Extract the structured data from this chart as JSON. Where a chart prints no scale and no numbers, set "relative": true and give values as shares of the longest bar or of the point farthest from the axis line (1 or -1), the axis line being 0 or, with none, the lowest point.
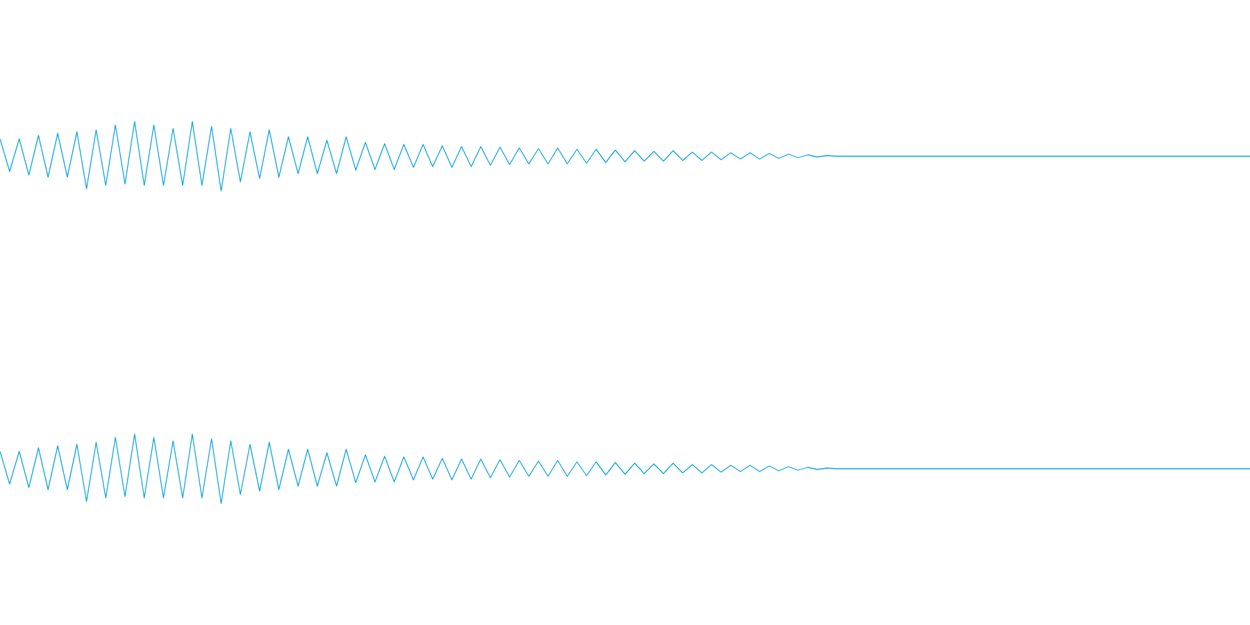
{
  "chart_data": [
    {
      "type": "line",
      "relative": true,
      "color": "#0aa5e0",
      "categories": [
        null,
        null,
        null,
        null,
        null,
        null,
        null,
        null,
        null,
        null,
        null,
        null,
        null,
        null,
        null,
        null,
        null,
        null,
        null,
        null,
        null,
        null,
        null,
        null,
        null,
        null,
        null,
        null,
        null,
        null,
        null,
        null,
        null,
        null,
        null,
        null,
        null,
        null,
        null,
        null,
        null,
        null,
        null,
        null,
        null,
        null,
        null,
        null,
        null,
        null,
        null,
        null,
        null,
        null,
        null,
        null,
        null,
        null,
        null,
        null,
        null,
        null,
        null,
        null,
        null,
        null,
        null,
        null,
        null,
        null,
        null,
        null,
        null,
        null,
        null,
        null,
        null,
        null,
        null,
        null,
        null,
        null,
        null,
        null,
        null,
        null,
        null,
        null,
        null,
        null,
        null,
        null,
        null,
        null,
        null,
        null,
        null,
        null,
        null,
        null,
        null,
        null,
        null,
        null,
        null,
        null,
        null,
        null,
        null,
        null,
        null,
        null,
        null,
        null,
        null,
        null,
        null,
        null,
        null,
        null,
        null,
        null,
        null,
        null,
        null,
        null,
        null,
        null,
        null,
        null,
        null
      ],
      "values": [
        0.75,
        0.28,
        0.75,
        0.23,
        0.8,
        0.2,
        0.83,
        0.2,
        0.85,
        0.03,
        0.88,
        0.08,
        0.95,
        0.1,
        1,
        0.08,
        0.95,
        0.08,
        0.9,
        0.08,
        1,
        0.08,
        0.93,
        0,
        0.9,
        0.13,
        0.85,
        0.18,
        0.88,
        0.2,
        0.78,
        0.25,
        0.78,
        0.25,
        0.73,
        0.25,
        0.78,
        0.3,
        0.7,
        0.31,
        0.68,
        0.31,
        0.67,
        0.34,
        0.67,
        0.35,
        0.65,
        0.34,
        0.64,
        0.35,
        0.64,
        0.37,
        0.63,
        0.38,
        0.62,
        0.39,
        0.61,
        0.39,
        0.62,
        0.39,
        0.6,
        0.4,
        0.6,
        0.41,
        0.59,
        0.42,
        0.58,
        0.43,
        0.57,
        0.43,
        0.58,
        0.44,
        0.56,
        0.44,
        0.56,
        0.45,
        0.55,
        0.46,
        0.55,
        0.46,
        0.54,
        0.47,
        0.53,
        0.48,
        0.52,
        0.49,
        0.51,
        0.5,
        0.5,
        0.5,
        0.5,
        0.5,
        0.5,
        0.5,
        0.5,
        0.5,
        0.5,
        0.5,
        0.5,
        0.5,
        0.5,
        0.5,
        0.5,
        0.5,
        0.5,
        0.5,
        0.5,
        0.5,
        0.5,
        0.5,
        0.5,
        0.5,
        0.5,
        0.5,
        0.5,
        0.5,
        0.5,
        0.5,
        0.5,
        0.5,
        0.5,
        0.5,
        0.5,
        0.5,
        0.5,
        0.5,
        0.5,
        0.5,
        0.5,
        0.5,
        0.5
      ]
    },
    {
      "type": "line",
      "relative": true,
      "color": "#0aa5e0",
      "categories": [
        null,
        null,
        null,
        null,
        null,
        null,
        null,
        null,
        null,
        null,
        null,
        null,
        null,
        null,
        null,
        null,
        null,
        null,
        null,
        null,
        null,
        null,
        null,
        null,
        null,
        null,
        null,
        null,
        null,
        null,
        null,
        null,
        null,
        null,
        null,
        null,
        null,
        null,
        null,
        null,
        null,
        null,
        null,
        null,
        null,
        null,
        null,
        null,
        null,
        null,
        null,
        null,
        null,
        null,
        null,
        null,
        null,
        null,
        null,
        null,
        null,
        null,
        null,
        null,
        null,
        null,
        null,
        null,
        null,
        null,
        null,
        null,
        null,
        null,
        null,
        null,
        null,
        null,
        null,
        null,
        null,
        null,
        null,
        null,
        null,
        null,
        null,
        null,
        null,
        null,
        null,
        null,
        null,
        null,
        null,
        null,
        null,
        null,
        null,
        null,
        null,
        null,
        null,
        null,
        null,
        null,
        null,
        null,
        null,
        null,
        null,
        null,
        null,
        null,
        null,
        null,
        null,
        null,
        null,
        null,
        null,
        null,
        null,
        null,
        null,
        null,
        null,
        null,
        null,
        null,
        null
      ],
      "values": [
        0.75,
        0.28,
        0.75,
        0.23,
        0.8,
        0.2,
        0.83,
        0.2,
        0.85,
        0.03,
        0.88,
        0.08,
        0.95,
        0.1,
        1,
        0.08,
        0.95,
        0.08,
        0.9,
        0.08,
        1,
        0.08,
        0.93,
        0,
        0.9,
        0.13,
        0.85,
        0.18,
        0.88,
        0.2,
        0.78,
        0.25,
        0.78,
        0.25,
        0.73,
        0.25,
        0.78,
        0.3,
        0.7,
        0.31,
        0.68,
        0.31,
        0.67,
        0.34,
        0.67,
        0.35,
        0.65,
        0.34,
        0.64,
        0.35,
        0.64,
        0.37,
        0.63,
        0.38,
        0.62,
        0.39,
        0.61,
        0.39,
        0.62,
        0.39,
        0.6,
        0.4,
        0.6,
        0.41,
        0.59,
        0.42,
        0.58,
        0.43,
        0.57,
        0.43,
        0.58,
        0.44,
        0.56,
        0.44,
        0.56,
        0.45,
        0.55,
        0.46,
        0.55,
        0.46,
        0.54,
        0.47,
        0.53,
        0.48,
        0.52,
        0.49,
        0.51,
        0.5,
        0.5,
        0.5,
        0.5,
        0.5,
        0.5,
        0.5,
        0.5,
        0.5,
        0.5,
        0.5,
        0.5,
        0.5,
        0.5,
        0.5,
        0.5,
        0.5,
        0.5,
        0.5,
        0.5,
        0.5,
        0.5,
        0.5,
        0.5,
        0.5,
        0.5,
        0.5,
        0.5,
        0.5,
        0.5,
        0.5,
        0.5,
        0.5,
        0.5,
        0.5,
        0.5,
        0.5,
        0.5,
        0.5,
        0.5,
        0.5,
        0.5,
        0.5,
        0.5
      ]
    }
  ]
}
